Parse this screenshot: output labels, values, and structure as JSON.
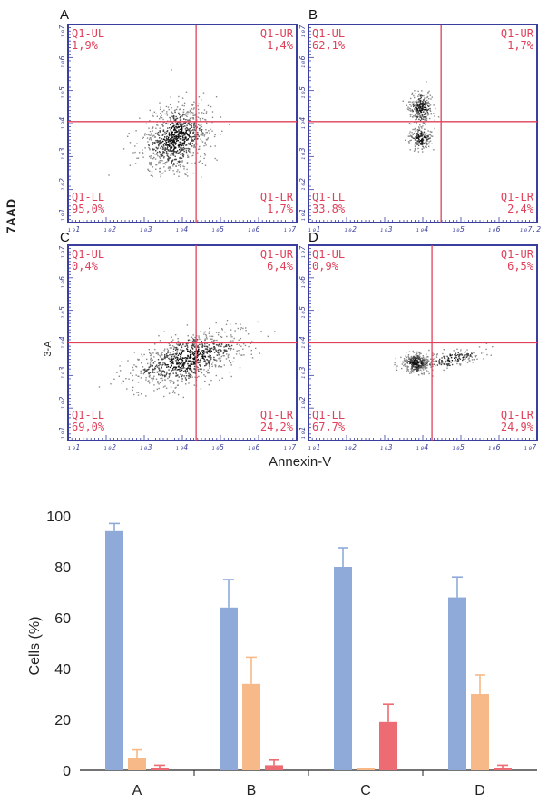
{
  "flow_panels": [
    {
      "id": "A",
      "ul_label": "Q1-UL",
      "ul": "1,9%",
      "ur_label": "Q1-UR",
      "ur": "1,4%",
      "ll_label": "Q1-LL",
      "ll": "95,0%",
      "lr_label": "Q1-LR",
      "lr": "1,7%"
    },
    {
      "id": "B",
      "ul_label": "Q1-UL",
      "ul": "62,1%",
      "ur_label": "Q1-UR",
      "ur": "1,7%",
      "ll_label": "Q1-LL",
      "ll": "33,8%",
      "lr_label": "Q1-LR",
      "lr": "2,4%"
    },
    {
      "id": "C",
      "ul_label": "Q1-UL",
      "ul": "0,4%",
      "ur_label": "Q1-UR",
      "ur": "6,4%",
      "ll_label": "Q1-LL",
      "ll": "69,0%",
      "lr_label": "Q1-LR",
      "lr": "24,2%"
    },
    {
      "id": "D",
      "ul_label": "Q1-UL",
      "ul": "0,9%",
      "ur_label": "Q1-UR",
      "ur": "6,5%",
      "ll_label": "Q1-LL",
      "ll": "67,7%",
      "lr_label": "Q1-LR",
      "lr": "24,9%"
    }
  ],
  "flow_axis": {
    "ylabel": "7AAD",
    "ylabel_fragment": "3-A",
    "xlabel": "Annexin-V",
    "x_ticks": [
      "₁₀1",
      "₁₀2",
      "₁₀3",
      "₁₀4",
      "₁₀5",
      "₁₀6",
      "₁₀7"
    ],
    "y_ticks": [
      "₁₀1",
      "₁₀2",
      "₁₀3",
      "₁₀4",
      "₁₀5",
      "₁₀6",
      "₁₀7"
    ],
    "x_tick_extra_B": "₁₀7.2",
    "quadrant_line_color": "#e0405a",
    "frame_color": "#3a3f9e",
    "label_color": "#e0405a"
  },
  "chart_data": {
    "type": "bar",
    "categories": [
      "A",
      "B",
      "C",
      "D"
    ],
    "ylabel": "Cells (%)",
    "xlabel": "",
    "ylim": [
      0,
      100
    ],
    "yticks": [
      0,
      20,
      40,
      60,
      80,
      100
    ],
    "series": [
      {
        "color": "#8faad9",
        "values": [
          94,
          64,
          80,
          68
        ],
        "errors": [
          3,
          11,
          7.5,
          8
        ]
      },
      {
        "color": "#f7b987",
        "values": [
          5,
          34,
          1,
          30
        ],
        "errors": [
          3,
          10.5,
          0,
          7.5
        ]
      },
      {
        "color": "#ed6b72",
        "values": [
          1,
          2,
          19,
          1
        ],
        "errors": [
          1,
          2,
          7,
          1
        ]
      }
    ],
    "grid": false,
    "legend": "none"
  }
}
